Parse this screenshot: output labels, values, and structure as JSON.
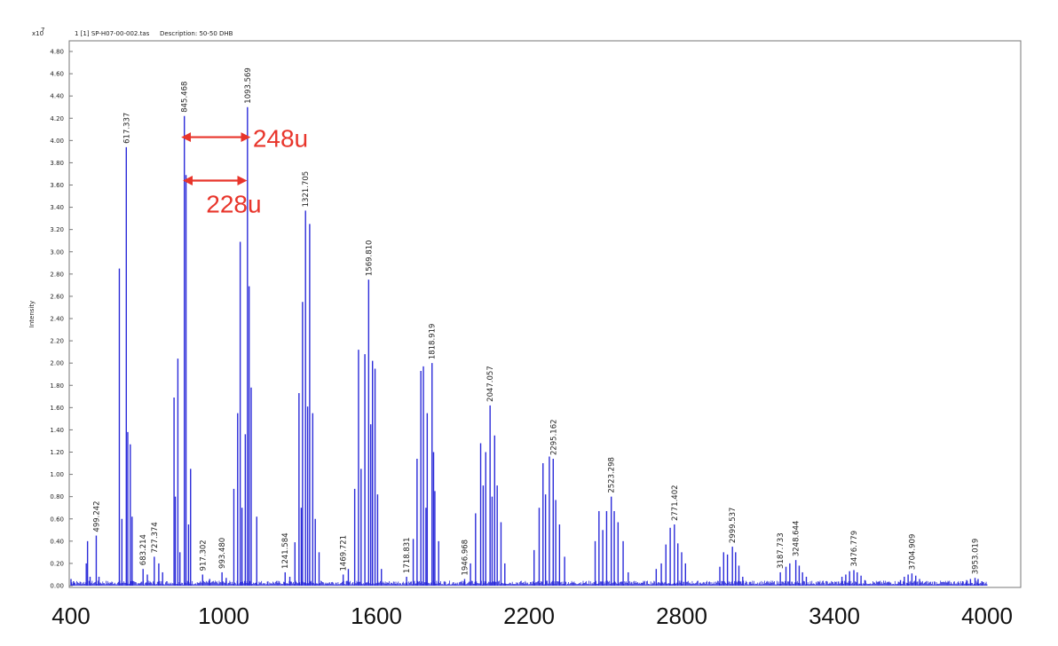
{
  "header": {
    "exponent": "x10",
    "exponent_power": "7",
    "file": "1 [1] SP-H07-00-002.tas",
    "description": "Description: 50-50 DHB"
  },
  "chart_data": {
    "type": "bar",
    "ylabel": "Intensity",
    "xlim": [
      400,
      4000
    ],
    "ylim": [
      0,
      4.8
    ],
    "x_ticks": [
      "400",
      "1000",
      "1600",
      "2200",
      "2800",
      "3400",
      "4000"
    ],
    "y_ticks": [
      "0.00",
      "0.20",
      "0.40",
      "0.60",
      "0.80",
      "1.00",
      "1.20",
      "1.40",
      "1.60",
      "1.80",
      "2.00",
      "2.20",
      "2.40",
      "2.60",
      "2.80",
      "3.00",
      "3.20",
      "3.40",
      "3.60",
      "3.80",
      "4.00",
      "4.20",
      "4.40",
      "4.60",
      "4.80"
    ],
    "peak_labels": [
      {
        "mz": 499.242,
        "label": "499.242"
      },
      {
        "mz": 617.337,
        "label": "617.337"
      },
      {
        "mz": 683.214,
        "label": "683.214"
      },
      {
        "mz": 727.374,
        "label": "727.374"
      },
      {
        "mz": 845.468,
        "label": "845.468"
      },
      {
        "mz": 917.302,
        "label": "917.302"
      },
      {
        "mz": 993.48,
        "label": "993.480"
      },
      {
        "mz": 1093.569,
        "label": "1093.569"
      },
      {
        "mz": 1241.584,
        "label": "1241.584"
      },
      {
        "mz": 1321.705,
        "label": "1321.705"
      },
      {
        "mz": 1469.721,
        "label": "1469.721"
      },
      {
        "mz": 1569.81,
        "label": "1569.810"
      },
      {
        "mz": 1718.831,
        "label": "1718.831"
      },
      {
        "mz": 1818.919,
        "label": "1818.919"
      },
      {
        "mz": 1946.968,
        "label": "1946.968"
      },
      {
        "mz": 2047.057,
        "label": "2047.057"
      },
      {
        "mz": 2295.162,
        "label": "2295.162"
      },
      {
        "mz": 2523.298,
        "label": "2523.298"
      },
      {
        "mz": 2771.402,
        "label": "2771.402"
      },
      {
        "mz": 2999.537,
        "label": "2999.537"
      },
      {
        "mz": 3187.733,
        "label": "3187.733"
      },
      {
        "mz": 3248.644,
        "label": "3248.644"
      },
      {
        "mz": 3476.779,
        "label": "3476.779"
      },
      {
        "mz": 3704.909,
        "label": "3704.909"
      },
      {
        "mz": 3953.019,
        "label": "3953.019"
      }
    ],
    "peaks": [
      {
        "mz": 400,
        "i": 0.06
      },
      {
        "mz": 410,
        "i": 0.04
      },
      {
        "mz": 460,
        "i": 0.2
      },
      {
        "mz": 465,
        "i": 0.4
      },
      {
        "mz": 475,
        "i": 0.08
      },
      {
        "mz": 499.242,
        "i": 0.45
      },
      {
        "mz": 510,
        "i": 0.08
      },
      {
        "mz": 590,
        "i": 2.85
      },
      {
        "mz": 600,
        "i": 0.6
      },
      {
        "mz": 617.337,
        "i": 3.94
      },
      {
        "mz": 623,
        "i": 1.38
      },
      {
        "mz": 633,
        "i": 1.27
      },
      {
        "mz": 640,
        "i": 0.62
      },
      {
        "mz": 683.214,
        "i": 0.15
      },
      {
        "mz": 700,
        "i": 0.1
      },
      {
        "mz": 727.374,
        "i": 0.26
      },
      {
        "mz": 745,
        "i": 0.2
      },
      {
        "mz": 760,
        "i": 0.12
      },
      {
        "mz": 805,
        "i": 1.69
      },
      {
        "mz": 810,
        "i": 0.8
      },
      {
        "mz": 820,
        "i": 2.04
      },
      {
        "mz": 828,
        "i": 0.3
      },
      {
        "mz": 845.468,
        "i": 4.22
      },
      {
        "mz": 852,
        "i": 3.69
      },
      {
        "mz": 862,
        "i": 0.55
      },
      {
        "mz": 870,
        "i": 1.05
      },
      {
        "mz": 917.302,
        "i": 0.1
      },
      {
        "mz": 945,
        "i": 0.06
      },
      {
        "mz": 993.48,
        "i": 0.12
      },
      {
        "mz": 1010,
        "i": 0.07
      },
      {
        "mz": 1040,
        "i": 0.87
      },
      {
        "mz": 1055,
        "i": 1.55
      },
      {
        "mz": 1065,
        "i": 3.09
      },
      {
        "mz": 1072,
        "i": 0.7
      },
      {
        "mz": 1085,
        "i": 1.36
      },
      {
        "mz": 1093.569,
        "i": 4.3
      },
      {
        "mz": 1100,
        "i": 2.69
      },
      {
        "mz": 1108,
        "i": 1.78
      },
      {
        "mz": 1130,
        "i": 0.62
      },
      {
        "mz": 1241.584,
        "i": 0.12
      },
      {
        "mz": 1260,
        "i": 0.08
      },
      {
        "mz": 1280,
        "i": 0.39
      },
      {
        "mz": 1296,
        "i": 1.73
      },
      {
        "mz": 1305,
        "i": 0.7
      },
      {
        "mz": 1310,
        "i": 2.55
      },
      {
        "mz": 1321.705,
        "i": 3.37
      },
      {
        "mz": 1330,
        "i": 1.61
      },
      {
        "mz": 1338,
        "i": 3.25
      },
      {
        "mz": 1350,
        "i": 1.55
      },
      {
        "mz": 1360,
        "i": 0.6
      },
      {
        "mz": 1375,
        "i": 0.3
      },
      {
        "mz": 1469.721,
        "i": 0.1
      },
      {
        "mz": 1490,
        "i": 0.15
      },
      {
        "mz": 1515,
        "i": 0.87
      },
      {
        "mz": 1530,
        "i": 2.12
      },
      {
        "mz": 1540,
        "i": 1.05
      },
      {
        "mz": 1555,
        "i": 2.08
      },
      {
        "mz": 1569.81,
        "i": 2.75
      },
      {
        "mz": 1578,
        "i": 1.45
      },
      {
        "mz": 1585,
        "i": 2.02
      },
      {
        "mz": 1595,
        "i": 1.95
      },
      {
        "mz": 1605,
        "i": 0.82
      },
      {
        "mz": 1620,
        "i": 0.15
      },
      {
        "mz": 1718.831,
        "i": 0.08
      },
      {
        "mz": 1745,
        "i": 0.42
      },
      {
        "mz": 1760,
        "i": 1.14
      },
      {
        "mz": 1775,
        "i": 1.93
      },
      {
        "mz": 1785,
        "i": 1.97
      },
      {
        "mz": 1795,
        "i": 0.7
      },
      {
        "mz": 1800,
        "i": 1.55
      },
      {
        "mz": 1818.919,
        "i": 2.0
      },
      {
        "mz": 1825,
        "i": 1.2
      },
      {
        "mz": 1830,
        "i": 0.85
      },
      {
        "mz": 1845,
        "i": 0.4
      },
      {
        "mz": 1946.968,
        "i": 0.06
      },
      {
        "mz": 1970,
        "i": 0.2
      },
      {
        "mz": 1990,
        "i": 0.65
      },
      {
        "mz": 2010,
        "i": 1.28
      },
      {
        "mz": 2020,
        "i": 0.9
      },
      {
        "mz": 2030,
        "i": 1.2
      },
      {
        "mz": 2047.057,
        "i": 1.62
      },
      {
        "mz": 2055,
        "i": 0.8
      },
      {
        "mz": 2065,
        "i": 1.35
      },
      {
        "mz": 2075,
        "i": 0.9
      },
      {
        "mz": 2090,
        "i": 0.57
      },
      {
        "mz": 2105,
        "i": 0.2
      },
      {
        "mz": 2220,
        "i": 0.32
      },
      {
        "mz": 2240,
        "i": 0.7
      },
      {
        "mz": 2255,
        "i": 1.1
      },
      {
        "mz": 2265,
        "i": 0.82
      },
      {
        "mz": 2280,
        "i": 1.16
      },
      {
        "mz": 2295.162,
        "i": 1.14
      },
      {
        "mz": 2305,
        "i": 0.77
      },
      {
        "mz": 2320,
        "i": 0.55
      },
      {
        "mz": 2340,
        "i": 0.26
      },
      {
        "mz": 2460,
        "i": 0.4
      },
      {
        "mz": 2475,
        "i": 0.67
      },
      {
        "mz": 2490,
        "i": 0.5
      },
      {
        "mz": 2505,
        "i": 0.67
      },
      {
        "mz": 2523.298,
        "i": 0.8
      },
      {
        "mz": 2535,
        "i": 0.67
      },
      {
        "mz": 2550,
        "i": 0.57
      },
      {
        "mz": 2570,
        "i": 0.4
      },
      {
        "mz": 2590,
        "i": 0.12
      },
      {
        "mz": 2700,
        "i": 0.15
      },
      {
        "mz": 2720,
        "i": 0.2
      },
      {
        "mz": 2738,
        "i": 0.37
      },
      {
        "mz": 2755,
        "i": 0.52
      },
      {
        "mz": 2771.402,
        "i": 0.55
      },
      {
        "mz": 2785,
        "i": 0.38
      },
      {
        "mz": 2800,
        "i": 0.3
      },
      {
        "mz": 2815,
        "i": 0.2
      },
      {
        "mz": 2950,
        "i": 0.17
      },
      {
        "mz": 2965,
        "i": 0.3
      },
      {
        "mz": 2980,
        "i": 0.28
      },
      {
        "mz": 2999.537,
        "i": 0.35
      },
      {
        "mz": 3012,
        "i": 0.3
      },
      {
        "mz": 3025,
        "i": 0.18
      },
      {
        "mz": 3040,
        "i": 0.08
      },
      {
        "mz": 3187.733,
        "i": 0.12
      },
      {
        "mz": 3210,
        "i": 0.17
      },
      {
        "mz": 3225,
        "i": 0.2
      },
      {
        "mz": 3248.644,
        "i": 0.23
      },
      {
        "mz": 3262,
        "i": 0.18
      },
      {
        "mz": 3275,
        "i": 0.12
      },
      {
        "mz": 3290,
        "i": 0.08
      },
      {
        "mz": 3430,
        "i": 0.08
      },
      {
        "mz": 3445,
        "i": 0.1
      },
      {
        "mz": 3460,
        "i": 0.13
      },
      {
        "mz": 3476.779,
        "i": 0.14
      },
      {
        "mz": 3490,
        "i": 0.12
      },
      {
        "mz": 3505,
        "i": 0.09
      },
      {
        "mz": 3520,
        "i": 0.05
      },
      {
        "mz": 3660,
        "i": 0.05
      },
      {
        "mz": 3675,
        "i": 0.08
      },
      {
        "mz": 3690,
        "i": 0.1
      },
      {
        "mz": 3704.909,
        "i": 0.11
      },
      {
        "mz": 3720,
        "i": 0.09
      },
      {
        "mz": 3735,
        "i": 0.06
      },
      {
        "mz": 3905,
        "i": 0.04
      },
      {
        "mz": 3920,
        "i": 0.05
      },
      {
        "mz": 3935,
        "i": 0.06
      },
      {
        "mz": 3953.019,
        "i": 0.07
      },
      {
        "mz": 3965,
        "i": 0.06
      },
      {
        "mz": 3980,
        "i": 0.04
      }
    ],
    "annotations": [
      {
        "label": "248u",
        "from_mz": 845.468,
        "to_mz": 1093.569,
        "at_i": 4.03
      },
      {
        "label": "228u",
        "from_mz": 852,
        "to_mz": 1080,
        "at_i": 3.64
      }
    ],
    "colors": {
      "peaks": "#2b2bd9",
      "annotation": "#e8352b",
      "axis": "#555555"
    }
  }
}
